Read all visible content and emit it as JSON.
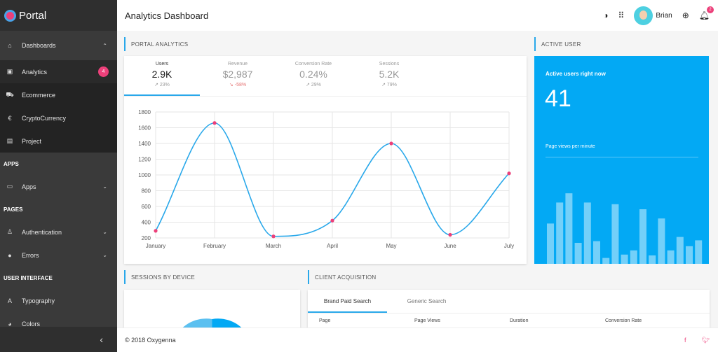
{
  "brand": {
    "name": "Portal"
  },
  "sidebar": {
    "dashboards": {
      "label": "Dashboards",
      "icon": "home-icon"
    },
    "dash_items": [
      {
        "label": "Analytics",
        "icon": "chart-square-icon",
        "badge": "4",
        "active": true
      },
      {
        "label": "Ecommerce",
        "icon": "cart-icon"
      },
      {
        "label": "CryptoCurrency",
        "icon": "euro-icon"
      },
      {
        "label": "Project",
        "icon": "calendar-icon"
      }
    ],
    "sections": {
      "apps": "APPS",
      "pages": "PAGES",
      "ui": "USER INTERFACE"
    },
    "apps_item": {
      "label": "Apps",
      "icon": "monitor-icon"
    },
    "pages_items": [
      {
        "label": "Authentication",
        "icon": "person-icon"
      },
      {
        "label": "Errors",
        "icon": "alert-icon"
      }
    ],
    "ui_items": [
      {
        "label": "Typography",
        "icon": "font-icon"
      },
      {
        "label": "Colors",
        "icon": "palette-icon"
      }
    ]
  },
  "header": {
    "title": "Analytics Dashboard",
    "user_name": "Brian",
    "notification_count": "2"
  },
  "portal_analytics": {
    "title": "PORTAL ANALYTICS",
    "stats": [
      {
        "label": "Users",
        "value": "2.9K",
        "trend": "23%"
      },
      {
        "label": "Revenue",
        "value": "$2,987",
        "trend": "-58%"
      },
      {
        "label": "Conversion Rate",
        "value": "0.24%",
        "trend": "29%"
      },
      {
        "label": "Sessions",
        "value": "5.2K",
        "trend": "79%"
      }
    ]
  },
  "chart_data": {
    "type": "line",
    "categories": [
      "January",
      "February",
      "March",
      "April",
      "May",
      "June",
      "July"
    ],
    "values": [
      290,
      1660,
      220,
      420,
      1400,
      240,
      1020
    ],
    "yticks": [
      200,
      400,
      600,
      800,
      1000,
      1200,
      1400,
      1600,
      1800
    ],
    "ylim": [
      200,
      1800
    ],
    "grid": true,
    "line_color": "#29a8ea",
    "point_color": "#ec407a"
  },
  "active_user": {
    "title": "ACTIVE USER",
    "heading": "Active users right now",
    "count": "41",
    "subheading": "Page views per minute",
    "bars": [
      48,
      73,
      84,
      25,
      73,
      27,
      7,
      71,
      11,
      16,
      65,
      10,
      54,
      16,
      32,
      21,
      28
    ]
  },
  "sessions_by_device": {
    "title": "SESSIONS BY DEVICE"
  },
  "client_acquisition": {
    "title": "CLIENT ACQUISITION",
    "tabs": [
      "Brand Paid Search",
      "Generic Search"
    ],
    "columns": [
      "Page",
      "Page Views",
      "Duration",
      "Conversion Rate"
    ]
  },
  "footer": {
    "copyright": "© 2018 Oxygenna"
  }
}
